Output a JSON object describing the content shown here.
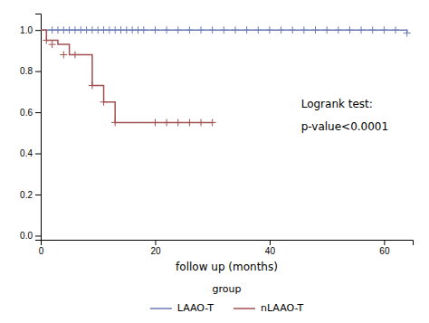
{
  "chart_data": {
    "type": "step",
    "xlabel": "follow up (months)",
    "xlim": [
      0,
      65
    ],
    "ylim": [
      -0.02,
      1.08
    ],
    "xticks": [
      0,
      20,
      40,
      60
    ],
    "yticks": [
      {
        "value": 0.0,
        "label": "0.0"
      },
      0.2,
      0.4,
      0.6,
      0.8,
      {
        "value": 1.0,
        "label": "1.0"
      }
    ],
    "grid": false,
    "legend": "bottom",
    "legend_title": "group",
    "annotations": [
      "Logrank test:",
      "p-value<0.0001"
    ],
    "series": [
      {
        "name": "LAAO-T",
        "color": "#6b7ab5",
        "marker": "plus",
        "x": [
          0,
          2,
          3,
          5,
          6,
          7,
          8,
          9,
          10,
          11,
          12,
          13,
          14,
          15,
          16,
          17,
          18,
          19,
          20,
          21,
          22,
          23,
          24,
          25,
          26,
          27,
          28,
          29,
          30,
          31,
          32,
          33,
          34,
          35,
          36,
          37,
          38,
          40,
          42,
          44,
          46,
          48,
          50,
          52,
          54,
          56,
          58,
          60,
          62,
          64
        ],
        "values": [
          1.0,
          1.0,
          1.0,
          1.0,
          1.0,
          1.0,
          1.0,
          1.0,
          1.0,
          1.0,
          1.0,
          1.0,
          1.0,
          1.0,
          1.0,
          1.0,
          1.0,
          1.0,
          1.0,
          1.0,
          1.0,
          1.0,
          1.0,
          1.0,
          1.0,
          1.0,
          1.0,
          1.0,
          1.0,
          1.0,
          1.0,
          1.0,
          1.0,
          1.0,
          1.0,
          1.0,
          1.0,
          1.0,
          1.0,
          1.0,
          1.0,
          1.0,
          1.0,
          1.0,
          1.0,
          1.0,
          1.0,
          1.0,
          1.0,
          0.985
        ],
        "censor_x": [
          2,
          3,
          4,
          5,
          6,
          7,
          8,
          9,
          10,
          11,
          12,
          13,
          14,
          15,
          16,
          17,
          18,
          20,
          22,
          24,
          26,
          28,
          30,
          32,
          34,
          36,
          38,
          40,
          42,
          44,
          46,
          48,
          50,
          52,
          54,
          56,
          58,
          60,
          62,
          64
        ],
        "censor_values": [
          1.0,
          1.0,
          1.0,
          1.0,
          1.0,
          1.0,
          1.0,
          1.0,
          1.0,
          1.0,
          1.0,
          1.0,
          1.0,
          1.0,
          1.0,
          1.0,
          1.0,
          1.0,
          1.0,
          1.0,
          1.0,
          1.0,
          1.0,
          1.0,
          1.0,
          1.0,
          1.0,
          1.0,
          1.0,
          1.0,
          1.0,
          1.0,
          1.0,
          1.0,
          1.0,
          1.0,
          1.0,
          1.0,
          1.0,
          0.985
        ]
      },
      {
        "name": "nLAAO-T",
        "color": "#a05050",
        "marker": "plus",
        "x": [
          0,
          1,
          2,
          3,
          4,
          5,
          6,
          7,
          8,
          9,
          10,
          11,
          12,
          13,
          14,
          15,
          16,
          17,
          18,
          19,
          20,
          21,
          22,
          23,
          24,
          25,
          26,
          27,
          28,
          29,
          30
        ],
        "values": [
          1.0,
          0.95,
          0.95,
          0.93,
          0.93,
          0.88,
          0.88,
          0.88,
          0.88,
          0.73,
          0.73,
          0.65,
          0.65,
          0.55,
          0.55,
          0.55,
          0.55,
          0.55,
          0.55,
          0.55,
          0.55,
          0.55,
          0.55,
          0.55,
          0.55,
          0.55,
          0.55,
          0.55,
          0.55,
          0.55,
          0.55
        ],
        "censor_x": [
          1,
          2,
          4,
          6,
          9,
          11,
          13,
          20,
          22,
          24,
          26,
          28,
          30
        ],
        "censor_values": [
          0.95,
          0.93,
          0.88,
          0.88,
          0.73,
          0.65,
          0.55,
          0.55,
          0.55,
          0.55,
          0.55,
          0.55,
          0.55
        ]
      }
    ]
  }
}
